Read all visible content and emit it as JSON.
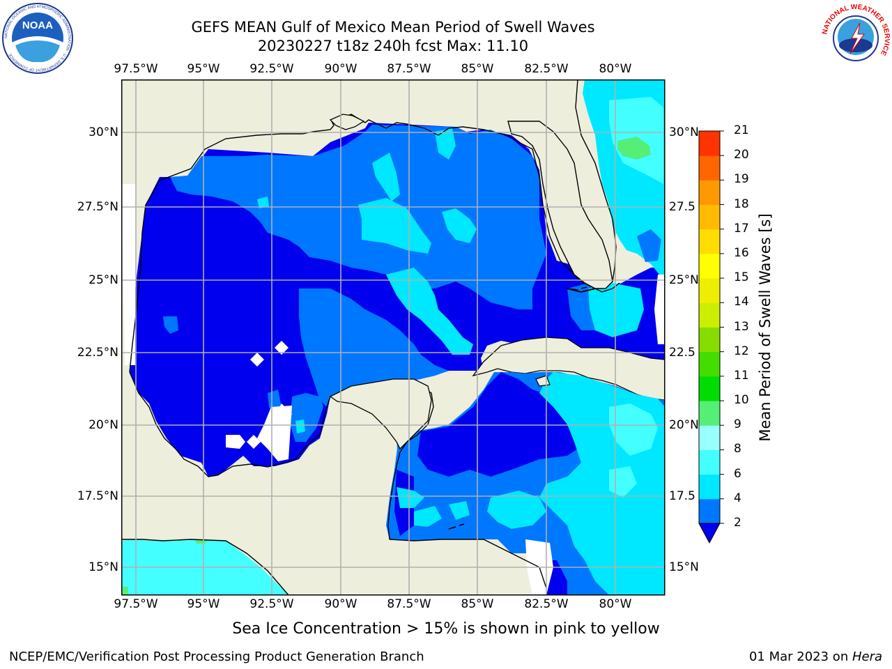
{
  "header": {
    "title_line1": "GEFS MEAN Gulf of Mexico Mean Period of Swell Waves",
    "title_line2": "20230227 t18z 240h fcst   Max: 11.10"
  },
  "map": {
    "lon_labels": [
      "97.5°W",
      "95°W",
      "92.5°W",
      "90°W",
      "87.5°W",
      "85°W",
      "82.5°W",
      "80°W"
    ],
    "lat_labels_left": [
      "30°N",
      "27.5°N",
      "25°N",
      "22.5°N",
      "20°N",
      "17.5°N",
      "15°N"
    ],
    "lat_labels_right": [
      "30°N",
      "27.5",
      "25°N",
      "22.5",
      "20°N",
      "17.5",
      "15°N"
    ],
    "colors": {
      "land": "#eeeedd",
      "grid": "#b0b0b0",
      "ocean_dark": "#0000ee",
      "ocean_mid": "#0077ff",
      "ocean_light": "#00e8ff",
      "ocean_pale": "#44ffff"
    }
  },
  "colorbar": {
    "title": "Mean Period of Swell Waves [s]",
    "ticks": [
      "2",
      "4",
      "6",
      "8",
      "9",
      "10",
      "11",
      "12",
      "13",
      "14",
      "15",
      "16",
      "17",
      "18",
      "19",
      "20",
      "21"
    ],
    "colors": [
      "#0077ff",
      "#00e8ff",
      "#44ffff",
      "#99ffff",
      "#55ee77",
      "#00dd00",
      "#44dd00",
      "#88dd00",
      "#ccee00",
      "#eeee00",
      "#ffff00",
      "#ffdd00",
      "#ffbb00",
      "#ff9900",
      "#ff6600",
      "#ff3300",
      "#ff0000"
    ],
    "under_color": "#0000ee"
  },
  "footer": {
    "note": "Sea Ice Concentration > 15% is shown in pink to yellow",
    "credit": "NCEP/EMC/Verification Post Processing Product Generation Branch",
    "date": "01 Mar 2023 on ",
    "machine": "Hera"
  },
  "logos": {
    "noaa": {
      "text": "NOAA",
      "ring_text": "NATIONAL OCEANIC AND ATMOSPHERIC ADMINISTRATION · U.S. DEPARTMENT OF COMMERCE"
    },
    "nws": {
      "ring_text": "NATIONAL WEATHER SERVICE"
    }
  }
}
